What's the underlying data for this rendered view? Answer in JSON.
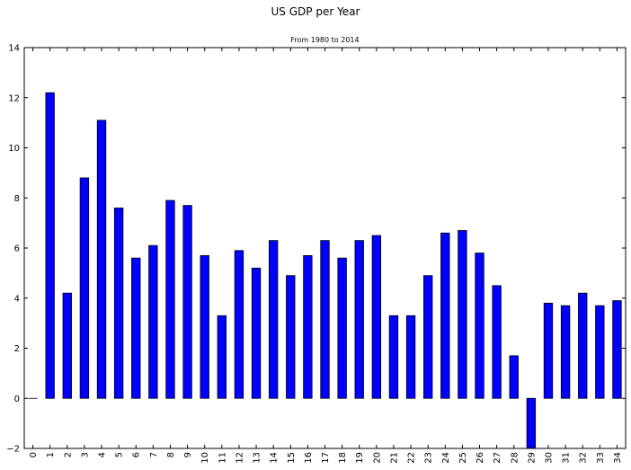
{
  "chart_data": {
    "type": "bar",
    "title": "US GDP per Year",
    "subtitle": "From 1980 to 2014",
    "xlabel": "",
    "ylabel": "",
    "categories": [
      "0",
      "1",
      "2",
      "3",
      "4",
      "5",
      "6",
      "7",
      "8",
      "9",
      "10",
      "11",
      "12",
      "13",
      "14",
      "15",
      "16",
      "17",
      "18",
      "19",
      "20",
      "21",
      "22",
      "23",
      "24",
      "25",
      "26",
      "27",
      "28",
      "29",
      "30",
      "31",
      "32",
      "33",
      "34"
    ],
    "values": [
      0.0,
      12.2,
      4.2,
      8.8,
      11.1,
      7.6,
      5.6,
      6.1,
      7.9,
      7.7,
      5.7,
      3.3,
      5.9,
      5.2,
      6.3,
      4.9,
      5.7,
      6.3,
      5.6,
      6.3,
      6.5,
      3.3,
      3.3,
      4.9,
      6.6,
      6.7,
      5.8,
      4.5,
      1.7,
      -2.0,
      3.8,
      3.7,
      4.2,
      3.7,
      3.9
    ],
    "ylim": [
      -2,
      14
    ],
    "yticks": [
      -2,
      0,
      2,
      4,
      6,
      8,
      10,
      12,
      14
    ],
    "grid": false,
    "legend": "none",
    "bar_color": "#0000ff",
    "edge_color": "#000000"
  }
}
